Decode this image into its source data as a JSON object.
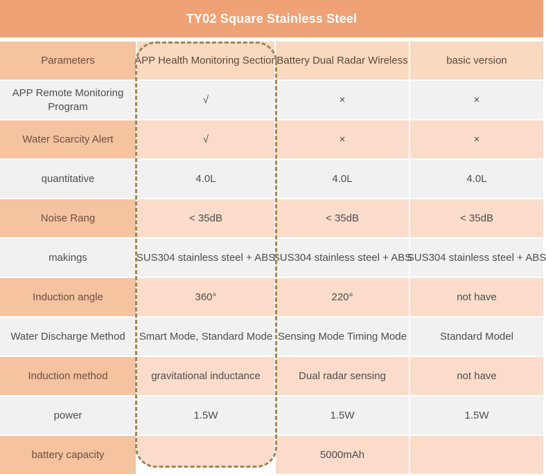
{
  "title": "TY02 Square Stainless Steel",
  "colors": {
    "title_bar": "#efa276",
    "label_peach": "#f5c3a0",
    "header_peach": "#f9d9c0",
    "cell_peach": "#fbdcca",
    "cell_gray": "#f1f1f2",
    "dash": "#9f8654",
    "label_text": "#6d4f3f"
  },
  "table": {
    "columns": [
      "Parameters",
      "APP Health Monitoring Section",
      "Battery Dual Radar Wireless",
      "basic version"
    ],
    "highlight": {
      "column_index": 1,
      "style": "dashed-rounded-outline"
    },
    "rows": [
      {
        "label": "APP Remote Monitoring Program",
        "values": [
          "√",
          "×",
          "×"
        ]
      },
      {
        "label": "Water Scarcity Alert",
        "values": [
          "√",
          "×",
          "×"
        ]
      },
      {
        "label": "quantitative",
        "values": [
          "4.0L",
          "4.0L",
          "4.0L"
        ]
      },
      {
        "label": "Noise Rang",
        "values": [
          "< 35dB",
          "< 35dB",
          "< 35dB"
        ]
      },
      {
        "label": "makings",
        "values": [
          "SUS304 stainless steel + ABS",
          "SUS304 stainless steel + ABS",
          "SUS304 stainless steel + ABS"
        ]
      },
      {
        "label": "Induction angle",
        "values": [
          "360°",
          "220°",
          "not have"
        ]
      },
      {
        "label": "Water Discharge Method",
        "values": [
          "Smart Mode, Standard Mode",
          "Sensing Mode Timing Mode",
          "Standard Model"
        ]
      },
      {
        "label": "Induction method",
        "values": [
          "gravitational inductance",
          "Dual radar sensing",
          "not have"
        ]
      },
      {
        "label": "power",
        "values": [
          "1.5W",
          "1.5W",
          "1.5W"
        ]
      },
      {
        "label": "battery capacity",
        "values": [
          "",
          "5000mAh",
          ""
        ]
      }
    ]
  }
}
